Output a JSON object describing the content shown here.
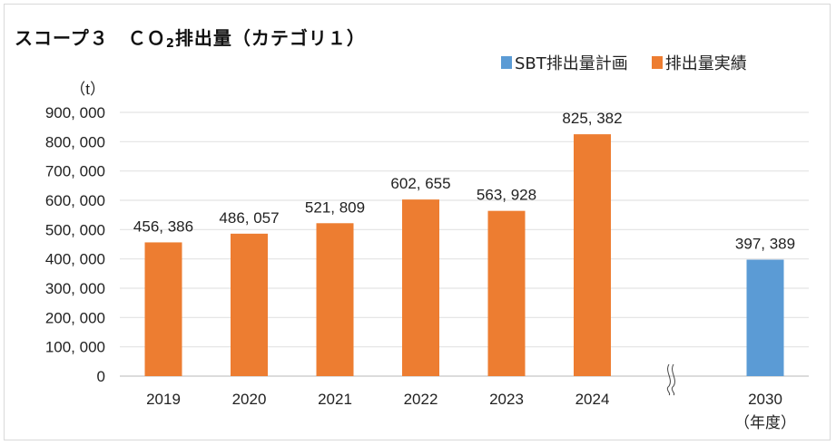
{
  "chart_data": {
    "type": "bar",
    "title": "スコープ３　ＣＯ₂排出量（カテゴリ１）",
    "title_parts": {
      "prefix": "スコープ３　ＣＯ",
      "sub": "2",
      "suffix": "排出量（カテゴリ１）"
    },
    "ylabel": "（t）",
    "xlabel": "（年度）",
    "ylim": [
      0,
      900000
    ],
    "yticks": [
      0,
      100000,
      200000,
      300000,
      400000,
      500000,
      600000,
      700000,
      800000,
      900000
    ],
    "ytick_labels": [
      "0",
      "100, 000",
      "200, 000",
      "300, 000",
      "400, 000",
      "500, 000",
      "600, 000",
      "700, 000",
      "800, 000",
      "900, 000"
    ],
    "grid": true,
    "legend_position": "top-right",
    "axis_break_between": [
      "2024",
      "2030"
    ],
    "categories": [
      "2019",
      "2020",
      "2021",
      "2022",
      "2023",
      "2024",
      "2030"
    ],
    "series": [
      {
        "name": "SBT排出量計画",
        "color": "#5b9bd5",
        "values": [
          null,
          null,
          null,
          null,
          null,
          null,
          397389
        ],
        "labels": [
          null,
          null,
          null,
          null,
          null,
          null,
          "397, 389"
        ]
      },
      {
        "name": "排出量実績",
        "color": "#ed7d31",
        "values": [
          456386,
          486057,
          521809,
          602655,
          563928,
          825382,
          null
        ],
        "labels": [
          "456, 386",
          "486, 057",
          "521, 809",
          "602, 655",
          "563, 928",
          "825, 382",
          null
        ]
      }
    ]
  }
}
